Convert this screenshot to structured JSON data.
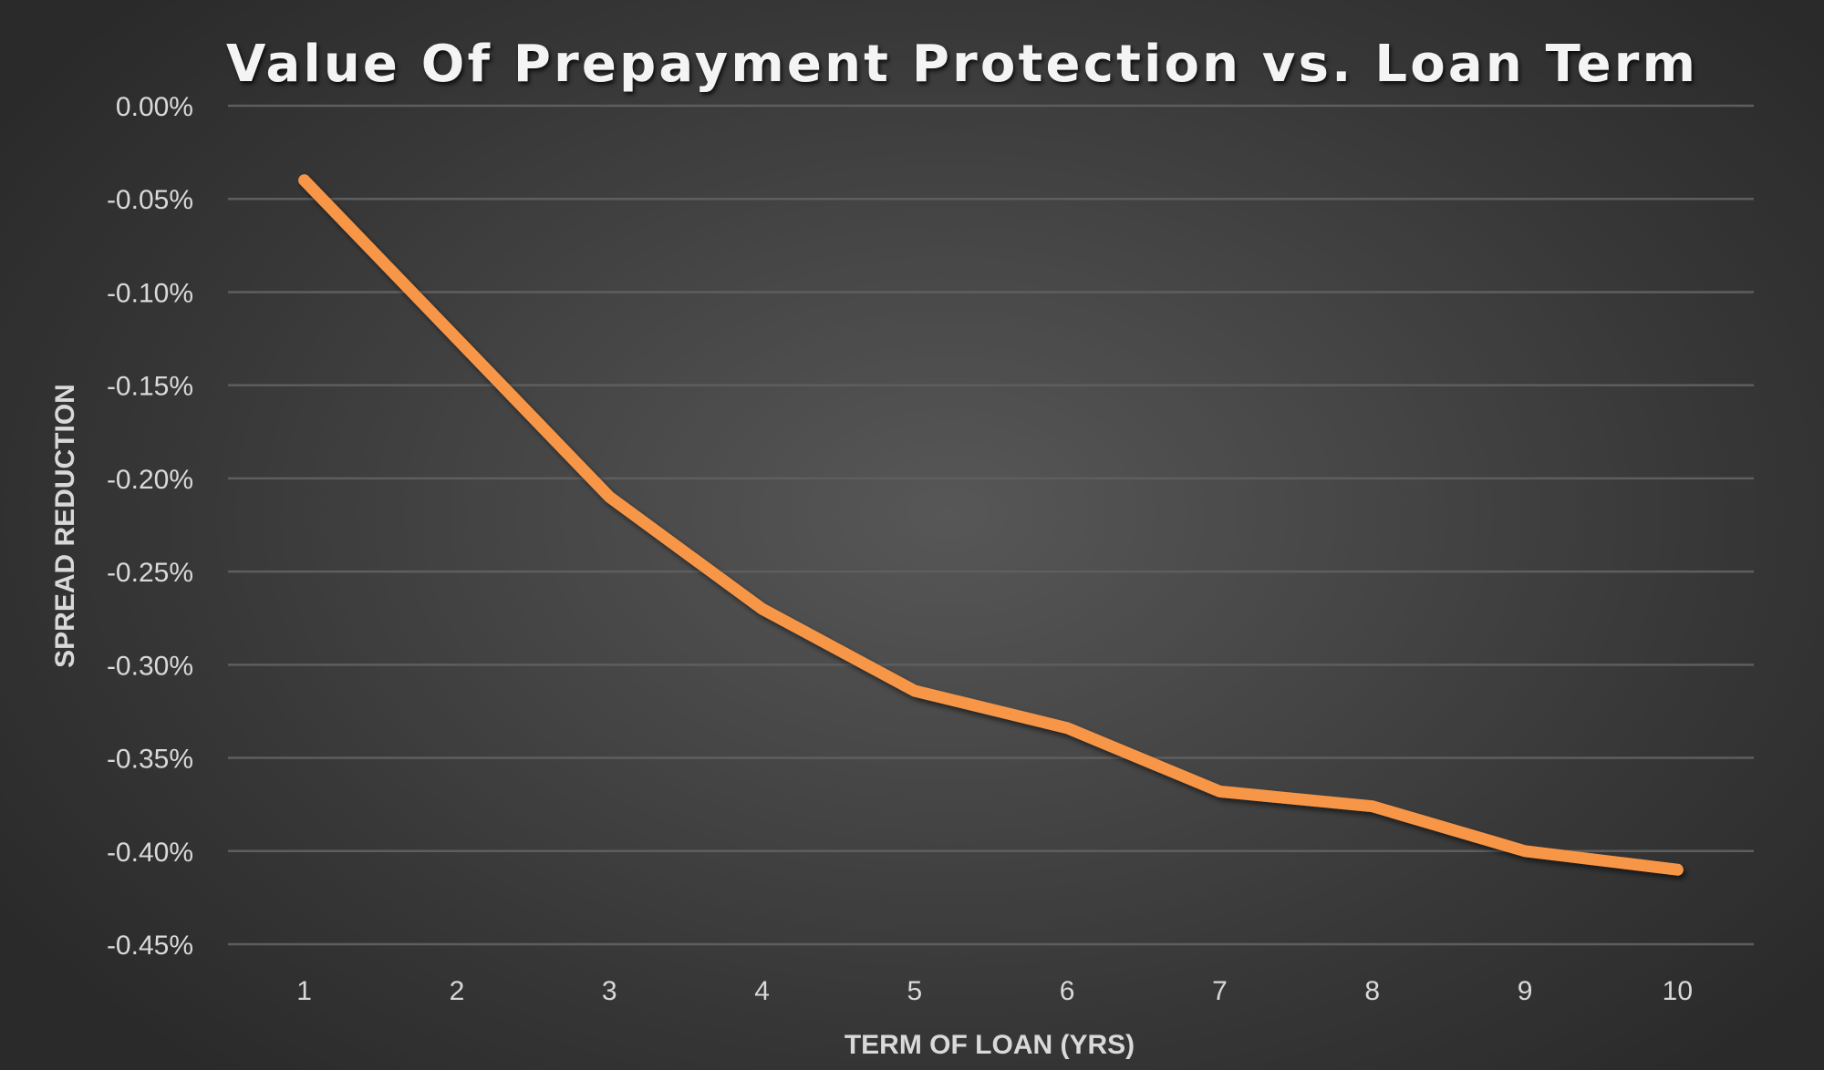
{
  "chart_title": "Value Of Prepayment Protection vs. Loan Term",
  "colors": {
    "line": "#F79646",
    "gridline": "#5e5e5e",
    "text": "#d9d9d9",
    "title": "#f4f4f4",
    "background_center": "#575757",
    "background_edge": "#2a2a2a"
  },
  "chart_data": {
    "type": "line",
    "title": "Value Of Prepayment Protection vs. Loan Term",
    "xlabel": "TERM OF LOAN (YRS)",
    "ylabel": "SPREAD REDUCTION",
    "categories": [
      "1",
      "2",
      "3",
      "4",
      "5",
      "6",
      "7",
      "8",
      "9",
      "10"
    ],
    "series": [
      {
        "name": "Spread Reduction",
        "color": "#F79646",
        "values": [
          -0.04,
          -0.125,
          -0.21,
          -0.27,
          -0.314,
          -0.334,
          -0.368,
          -0.376,
          -0.4,
          -0.41
        ]
      }
    ],
    "y_ticks": [
      "0.00%",
      "-0.05%",
      "-0.10%",
      "-0.15%",
      "-0.20%",
      "-0.25%",
      "-0.30%",
      "-0.35%",
      "-0.40%",
      "-0.45%"
    ],
    "y_tick_values": [
      0.0,
      -0.05,
      -0.1,
      -0.15,
      -0.2,
      -0.25,
      -0.3,
      -0.35,
      -0.4,
      -0.45
    ],
    "ylim": [
      -0.45,
      0.0
    ],
    "y_unit": "%",
    "grid": true,
    "legend": "none"
  }
}
